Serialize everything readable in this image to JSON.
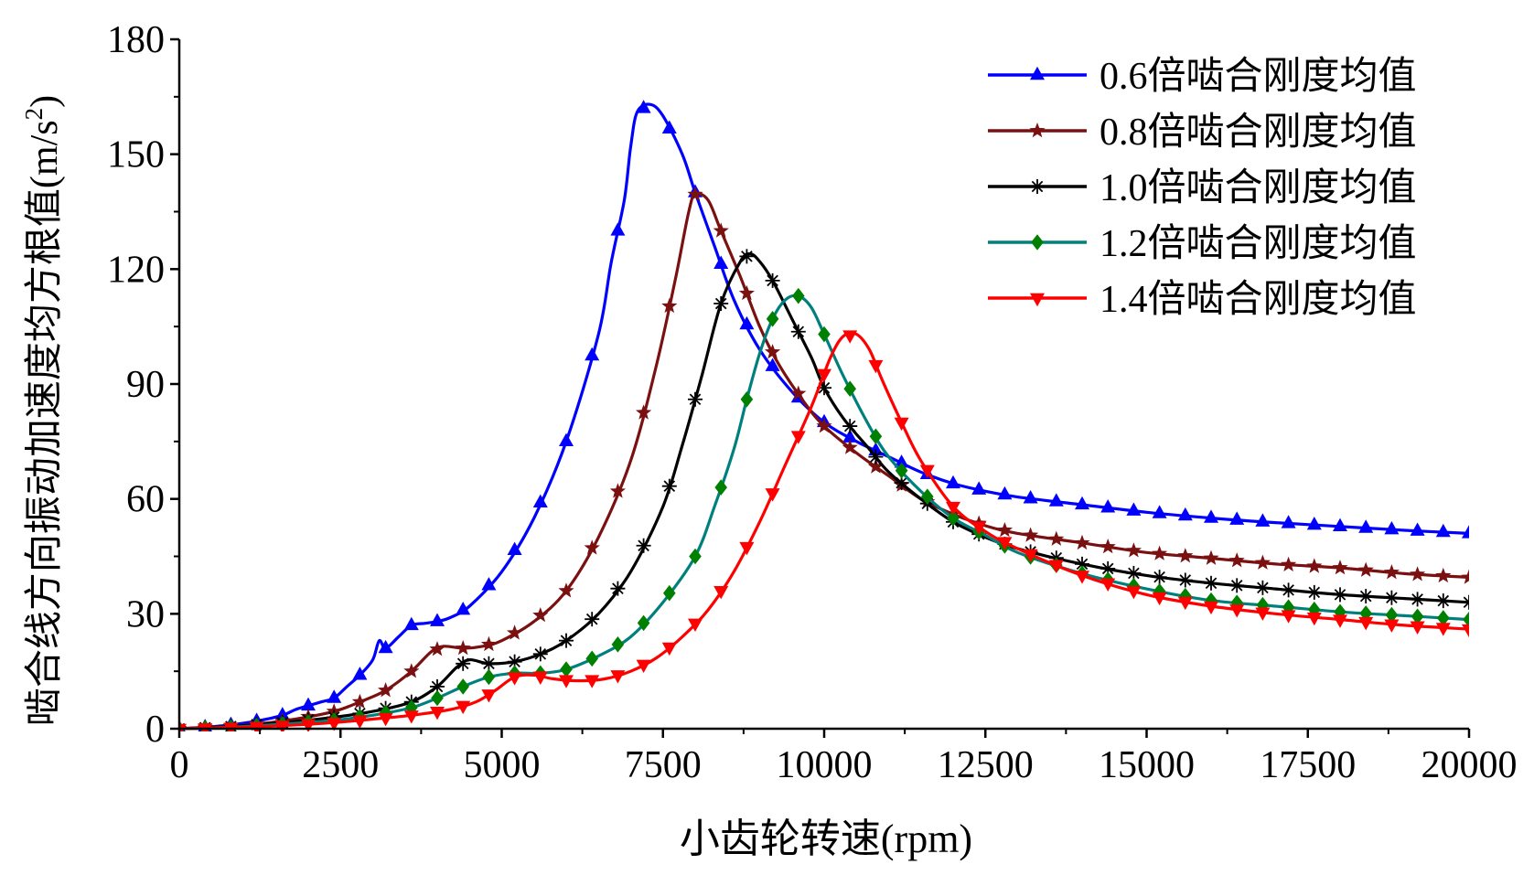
{
  "chart_data": {
    "type": "line",
    "xlabel": "小齿轮转速(rpm)",
    "ylabel_main": "啮合线方向振动加速度均方根值(m/s",
    "ylabel_sup": "2",
    "ylabel_end": ")",
    "xlim": [
      0,
      20000
    ],
    "ylim": [
      0,
      180
    ],
    "x_ticks": [
      0,
      2500,
      5000,
      7500,
      10000,
      12500,
      15000,
      17500,
      20000
    ],
    "x_tick_labels": [
      "0",
      "2500",
      "5000",
      "7500",
      "10000",
      "12500",
      "15000",
      "17500",
      "20000"
    ],
    "y_ticks": [
      0,
      30,
      60,
      90,
      120,
      150,
      180
    ],
    "y_tick_labels": [
      "0",
      "30",
      "60",
      "90",
      "120",
      "150",
      "180"
    ],
    "grid": false,
    "legend_position": "top-right",
    "series": [
      {
        "name": "0.6倍啮合刚度均值",
        "color": "#0000ff",
        "marker": "triangle-up",
        "points": [
          [
            0,
            0
          ],
          [
            400,
            0.4
          ],
          [
            800,
            1
          ],
          [
            1200,
            2
          ],
          [
            1600,
            3.5
          ],
          [
            1800,
            5
          ],
          [
            2000,
            6
          ],
          [
            2200,
            7
          ],
          [
            2400,
            8
          ],
          [
            2600,
            11
          ],
          [
            2800,
            14
          ],
          [
            3000,
            18
          ],
          [
            3100,
            23
          ],
          [
            3200,
            21
          ],
          [
            3400,
            24
          ],
          [
            3600,
            27
          ],
          [
            3800,
            27.5
          ],
          [
            4000,
            28
          ],
          [
            4200,
            29
          ],
          [
            4500,
            32
          ],
          [
            5000,
            41
          ],
          [
            5500,
            55
          ],
          [
            6000,
            75
          ],
          [
            6500,
            103
          ],
          [
            6700,
            122
          ],
          [
            6900,
            138
          ],
          [
            7000,
            152
          ],
          [
            7100,
            161
          ],
          [
            7300,
            163
          ],
          [
            7500,
            160
          ],
          [
            7800,
            150
          ],
          [
            8000,
            140
          ],
          [
            8300,
            126
          ],
          [
            8600,
            112
          ],
          [
            9000,
            99
          ],
          [
            9500,
            88
          ],
          [
            10000,
            80
          ],
          [
            10500,
            75
          ],
          [
            11000,
            71
          ],
          [
            11500,
            67
          ],
          [
            12000,
            64
          ],
          [
            12500,
            62
          ],
          [
            13000,
            60.5
          ],
          [
            14000,
            58.5
          ],
          [
            15000,
            56.5
          ],
          [
            16000,
            55
          ],
          [
            17000,
            53.8
          ],
          [
            18000,
            52.8
          ],
          [
            19000,
            51.8
          ],
          [
            20000,
            51
          ]
        ]
      },
      {
        "name": "0.8倍啮合刚度均值",
        "color": "#7b1010",
        "marker": "star",
        "points": [
          [
            0,
            0
          ],
          [
            600,
            0.5
          ],
          [
            1200,
            1.2
          ],
          [
            1800,
            2.5
          ],
          [
            2400,
            4.5
          ],
          [
            2800,
            7
          ],
          [
            3200,
            10
          ],
          [
            3600,
            15
          ],
          [
            3900,
            20
          ],
          [
            4100,
            21.5
          ],
          [
            4400,
            21
          ],
          [
            4700,
            21.5
          ],
          [
            5000,
            23
          ],
          [
            5500,
            28
          ],
          [
            6000,
            36
          ],
          [
            6500,
            50
          ],
          [
            7000,
            70
          ],
          [
            7400,
            95
          ],
          [
            7700,
            118
          ],
          [
            7900,
            135
          ],
          [
            8000,
            139.5
          ],
          [
            8200,
            138
          ],
          [
            8400,
            130
          ],
          [
            8700,
            118
          ],
          [
            9000,
            105
          ],
          [
            9300,
            95
          ],
          [
            9700,
            85
          ],
          [
            10000,
            79
          ],
          [
            10500,
            72
          ],
          [
            11000,
            66
          ],
          [
            11500,
            60
          ],
          [
            12000,
            56
          ],
          [
            12500,
            53
          ],
          [
            13000,
            51
          ],
          [
            14000,
            48.5
          ],
          [
            15000,
            46
          ],
          [
            16000,
            44.5
          ],
          [
            17000,
            43
          ],
          [
            18000,
            42
          ],
          [
            19000,
            40.5
          ],
          [
            20000,
            39.5
          ]
        ]
      },
      {
        "name": "1.0倍啮合刚度均值",
        "color": "#000000",
        "marker": "asterisk",
        "points": [
          [
            0,
            0
          ],
          [
            800,
            0.6
          ],
          [
            1600,
            1.6
          ],
          [
            2400,
            3
          ],
          [
            3000,
            4.5
          ],
          [
            3600,
            7
          ],
          [
            4000,
            11
          ],
          [
            4300,
            16
          ],
          [
            4500,
            18
          ],
          [
            4800,
            17
          ],
          [
            5200,
            17.5
          ],
          [
            5600,
            19.5
          ],
          [
            6000,
            23
          ],
          [
            6500,
            30
          ],
          [
            7000,
            41
          ],
          [
            7500,
            58
          ],
          [
            7800,
            74
          ],
          [
            8100,
            92
          ],
          [
            8400,
            111
          ],
          [
            8700,
            122
          ],
          [
            8850,
            124
          ],
          [
            9000,
            122
          ],
          [
            9200,
            117
          ],
          [
            9500,
            107
          ],
          [
            9800,
            97
          ],
          [
            10000,
            89
          ],
          [
            10300,
            81
          ],
          [
            10700,
            73
          ],
          [
            11000,
            67
          ],
          [
            11500,
            60
          ],
          [
            12000,
            54
          ],
          [
            12500,
            50
          ],
          [
            13000,
            47
          ],
          [
            14000,
            43
          ],
          [
            15000,
            40
          ],
          [
            16000,
            38
          ],
          [
            17000,
            36.5
          ],
          [
            18000,
            35
          ],
          [
            19000,
            34
          ],
          [
            20000,
            33
          ]
        ]
      },
      {
        "name": "1.2倍啮合刚度均值",
        "color": "#00807d",
        "marker": "diamond",
        "points": [
          [
            0,
            0
          ],
          [
            800,
            0.4
          ],
          [
            1600,
            1.2
          ],
          [
            2400,
            2.2
          ],
          [
            3000,
            3.5
          ],
          [
            3600,
            5.5
          ],
          [
            4000,
            8
          ],
          [
            4400,
            11
          ],
          [
            4800,
            13.5
          ],
          [
            5200,
            14.5
          ],
          [
            5600,
            14.5
          ],
          [
            6000,
            15.5
          ],
          [
            6500,
            19
          ],
          [
            7000,
            24
          ],
          [
            7500,
            33
          ],
          [
            8000,
            45
          ],
          [
            8300,
            58
          ],
          [
            8600,
            73
          ],
          [
            8800,
            86
          ],
          [
            9000,
            98
          ],
          [
            9200,
            107
          ],
          [
            9400,
            112
          ],
          [
            9600,
            113
          ],
          [
            9800,
            110
          ],
          [
            10000,
            103
          ],
          [
            10300,
            92
          ],
          [
            10700,
            79
          ],
          [
            11000,
            71
          ],
          [
            11500,
            62
          ],
          [
            12000,
            55
          ],
          [
            12500,
            50.5
          ],
          [
            13000,
            46
          ],
          [
            14000,
            40.5
          ],
          [
            15000,
            36.5
          ],
          [
            16000,
            33.5
          ],
          [
            17000,
            32
          ],
          [
            18000,
            30.5
          ],
          [
            19000,
            29.5
          ],
          [
            20000,
            28.5
          ]
        ]
      },
      {
        "name": "1.4倍啮合刚度均值",
        "color": "#ff0000",
        "marker": "triangle-down",
        "points": [
          [
            0,
            0
          ],
          [
            800,
            0.3
          ],
          [
            1600,
            0.8
          ],
          [
            2400,
            1.6
          ],
          [
            3000,
            2.5
          ],
          [
            3600,
            3.5
          ],
          [
            4200,
            5
          ],
          [
            4600,
            7
          ],
          [
            4900,
            10
          ],
          [
            5200,
            13.5
          ],
          [
            5500,
            14
          ],
          [
            5800,
            13
          ],
          [
            6200,
            12.5
          ],
          [
            6600,
            13
          ],
          [
            7000,
            15
          ],
          [
            7400,
            18.5
          ],
          [
            7800,
            24
          ],
          [
            8200,
            31
          ],
          [
            8600,
            41
          ],
          [
            9000,
            54
          ],
          [
            9400,
            69
          ],
          [
            9800,
            84
          ],
          [
            10100,
            97
          ],
          [
            10300,
            102.5
          ],
          [
            10500,
            103
          ],
          [
            10700,
            99
          ],
          [
            10900,
            91
          ],
          [
            11200,
            80
          ],
          [
            11500,
            70
          ],
          [
            12000,
            58
          ],
          [
            12500,
            51.5
          ],
          [
            13000,
            47
          ],
          [
            14000,
            40
          ],
          [
            15000,
            35
          ],
          [
            16000,
            32
          ],
          [
            17000,
            30
          ],
          [
            18000,
            28.5
          ],
          [
            19000,
            27
          ],
          [
            20000,
            26
          ]
        ]
      }
    ]
  }
}
